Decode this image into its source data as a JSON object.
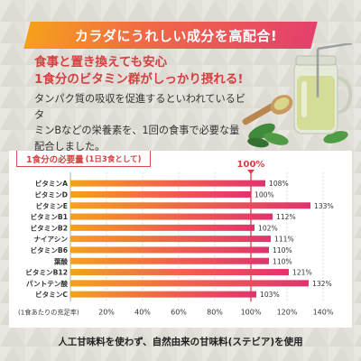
{
  "banner": {
    "text": "カラダにうれしい成分を高配合!"
  },
  "headline": {
    "line1": "食事と置き換えても安心",
    "line2": "1食分のビタミン群がしっかり摂れる!"
  },
  "body": {
    "line1": "タンパク質の吸収を促進するといわれているビタ",
    "line2": "ミンBなどの栄養素を、1回の食事で必要な量",
    "line3": "配合しました。"
  },
  "footer": {
    "text": "人工甘味料を使わず、自然由来の甘味料(ステビア)を使用"
  },
  "chart_data": {
    "type": "bar",
    "orientation": "horizontal",
    "title": "1食分の必要量",
    "subtitle": "(1日3食として)",
    "xlabel": "(1食あたりの充足率)",
    "reference_label": "100%",
    "reference_value": 100,
    "categories": [
      "ビタミンA",
      "ビタミンD",
      "ビタミンE",
      "ビタミンB1",
      "ビタミンB2",
      "ナイアシン",
      "ビタミンB6",
      "葉酸",
      "ビタミンB12",
      "パントテン酸",
      "ビタミンC"
    ],
    "values": [
      108,
      100,
      133,
      112,
      102,
      111,
      110,
      110,
      121,
      132,
      103
    ],
    "value_labels": [
      "108%",
      "100%",
      "133%",
      "112%",
      "102%",
      "111%",
      "110%",
      "110%",
      "121%",
      "132%",
      "103%"
    ],
    "x_ticks": [
      20,
      40,
      60,
      80,
      100,
      120,
      140
    ],
    "x_tick_labels": [
      "20%",
      "40%",
      "60%",
      "80%",
      "100%",
      "120%",
      "140%"
    ],
    "xlim": [
      0,
      140
    ],
    "grid": true,
    "colors": {
      "bar_start": "#f4a11c",
      "bar_mid": "#ef5e4f",
      "bar_end": "#e0336e",
      "reference": "#d63f3f"
    }
  }
}
